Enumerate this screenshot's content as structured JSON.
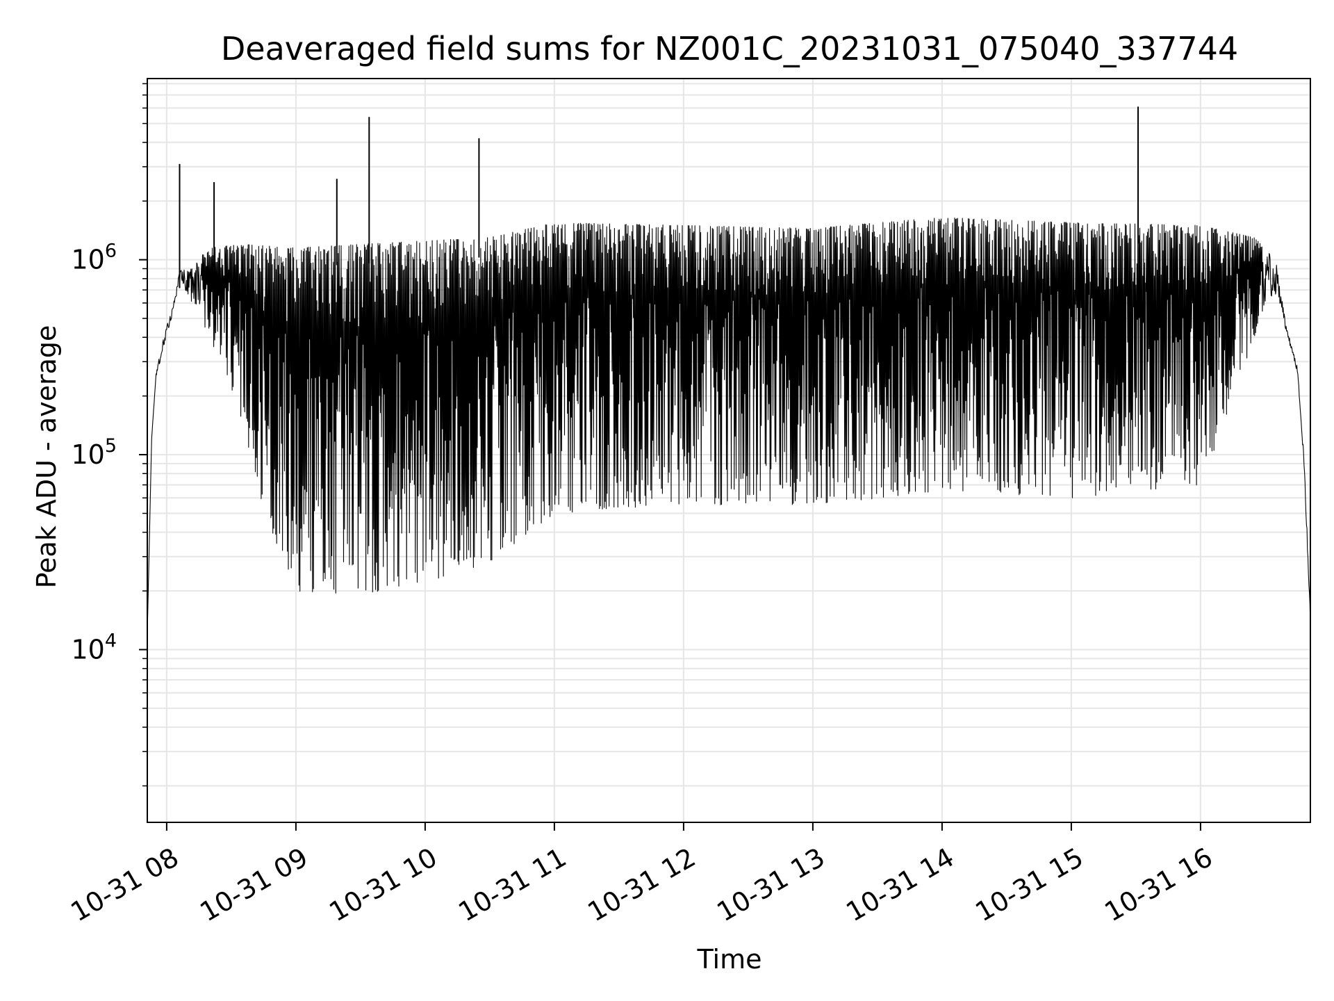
{
  "chart_data": {
    "type": "line",
    "title": "Deaveraged field sums for NZ001C_20231031_075040_337744",
    "xlabel": "Time",
    "ylabel": "Peak ADU - average",
    "yscale": "log",
    "ylim": [
      1300,
      8500000
    ],
    "xlim": [
      "2023-10-31 07:51",
      "2023-10-31 16:51"
    ],
    "grid": true,
    "line_color": "#000000",
    "grid_color": "#e6e6e6",
    "x_ticks": [
      {
        "label": "10-31 08",
        "time": "2023-10-31 08:00"
      },
      {
        "label": "10-31 09",
        "time": "2023-10-31 09:00"
      },
      {
        "label": "10-31 10",
        "time": "2023-10-31 10:00"
      },
      {
        "label": "10-31 11",
        "time": "2023-10-31 11:00"
      },
      {
        "label": "10-31 12",
        "time": "2023-10-31 12:00"
      },
      {
        "label": "10-31 13",
        "time": "2023-10-31 13:00"
      },
      {
        "label": "10-31 14",
        "time": "2023-10-31 14:00"
      },
      {
        "label": "10-31 15",
        "time": "2023-10-31 15:00"
      },
      {
        "label": "10-31 16",
        "time": "2023-10-31 16:00"
      }
    ],
    "y_ticks": [
      {
        "base": "10",
        "exp": "4",
        "value": 10000
      },
      {
        "base": "10",
        "exp": "5",
        "value": 100000
      },
      {
        "base": "10",
        "exp": "6",
        "value": 1000000
      }
    ],
    "series": [
      {
        "upper_envelope": [
          {
            "x": "2023-10-31 07:51",
            "y": 12000
          },
          {
            "x": "2023-10-31 07:53",
            "y": 120000
          },
          {
            "x": "2023-10-31 07:55",
            "y": 260000
          },
          {
            "x": "2023-10-31 07:58",
            "y": 380000
          },
          {
            "x": "2023-10-31 08:04",
            "y": 650000
          },
          {
            "x": "2023-10-31 08:06",
            "y": 900000
          },
          {
            "x": "2023-10-31 08:12",
            "y": 950000
          },
          {
            "x": "2023-10-31 08:20",
            "y": 1150000
          },
          {
            "x": "2023-10-31 08:35",
            "y": 1200000
          },
          {
            "x": "2023-10-31 09:00",
            "y": 1150000
          },
          {
            "x": "2023-10-31 09:30",
            "y": 1200000
          },
          {
            "x": "2023-10-31 10:00",
            "y": 1250000
          },
          {
            "x": "2023-10-31 10:30",
            "y": 1300000
          },
          {
            "x": "2023-10-31 11:00",
            "y": 1550000
          },
          {
            "x": "2023-10-31 12:00",
            "y": 1500000
          },
          {
            "x": "2023-10-31 13:00",
            "y": 1450000
          },
          {
            "x": "2023-10-31 14:00",
            "y": 1650000
          },
          {
            "x": "2023-10-31 15:00",
            "y": 1550000
          },
          {
            "x": "2023-10-31 16:00",
            "y": 1500000
          },
          {
            "x": "2023-10-31 16:25",
            "y": 1300000
          },
          {
            "x": "2023-10-31 16:35",
            "y": 1000000
          },
          {
            "x": "2023-10-31 16:40",
            "y": 450000
          },
          {
            "x": "2023-10-31 16:45",
            "y": 280000
          },
          {
            "x": "2023-10-31 16:48",
            "y": 100000
          },
          {
            "x": "2023-10-31 16:50",
            "y": 30000
          },
          {
            "x": "2023-10-31 16:51",
            "y": 15000
          }
        ],
        "lower_envelope": [
          {
            "x": "2023-10-31 07:51",
            "y": 12000
          },
          {
            "x": "2023-10-31 07:53",
            "y": 120000
          },
          {
            "x": "2023-10-31 07:55",
            "y": 250000
          },
          {
            "x": "2023-10-31 07:58",
            "y": 330000
          },
          {
            "x": "2023-10-31 08:04",
            "y": 600000
          },
          {
            "x": "2023-10-31 08:06",
            "y": 800000
          },
          {
            "x": "2023-10-31 08:15",
            "y": 500000
          },
          {
            "x": "2023-10-31 08:25",
            "y": 300000
          },
          {
            "x": "2023-10-31 08:35",
            "y": 150000
          },
          {
            "x": "2023-10-31 08:45",
            "y": 50000
          },
          {
            "x": "2023-10-31 09:00",
            "y": 20000
          },
          {
            "x": "2023-10-31 09:30",
            "y": 19000
          },
          {
            "x": "2023-10-31 10:00",
            "y": 22000
          },
          {
            "x": "2023-10-31 10:30",
            "y": 28000
          },
          {
            "x": "2023-10-31 11:00",
            "y": 50000
          },
          {
            "x": "2023-10-31 12:00",
            "y": 55000
          },
          {
            "x": "2023-10-31 13:00",
            "y": 55000
          },
          {
            "x": "2023-10-31 14:00",
            "y": 65000
          },
          {
            "x": "2023-10-31 15:00",
            "y": 60000
          },
          {
            "x": "2023-10-31 16:00",
            "y": 70000
          },
          {
            "x": "2023-10-31 16:20",
            "y": 250000
          },
          {
            "x": "2023-10-31 16:30",
            "y": 600000
          },
          {
            "x": "2023-10-31 16:35",
            "y": 650000
          },
          {
            "x": "2023-10-31 16:40",
            "y": 420000
          },
          {
            "x": "2023-10-31 16:45",
            "y": 260000
          },
          {
            "x": "2023-10-31 16:48",
            "y": 90000
          },
          {
            "x": "2023-10-31 16:50",
            "y": 25000
          },
          {
            "x": "2023-10-31 16:51",
            "y": 12000
          }
        ],
        "spikes": [
          {
            "x": "2023-10-31 08:06",
            "y": 3100000
          },
          {
            "x": "2023-10-31 08:22",
            "y": 2500000
          },
          {
            "x": "2023-10-31 09:19",
            "y": 2600000
          },
          {
            "x": "2023-10-31 09:34",
            "y": 5400000
          },
          {
            "x": "2023-10-31 10:25",
            "y": 4200000
          },
          {
            "x": "2023-10-31 15:31",
            "y": 6100000
          }
        ]
      }
    ]
  }
}
